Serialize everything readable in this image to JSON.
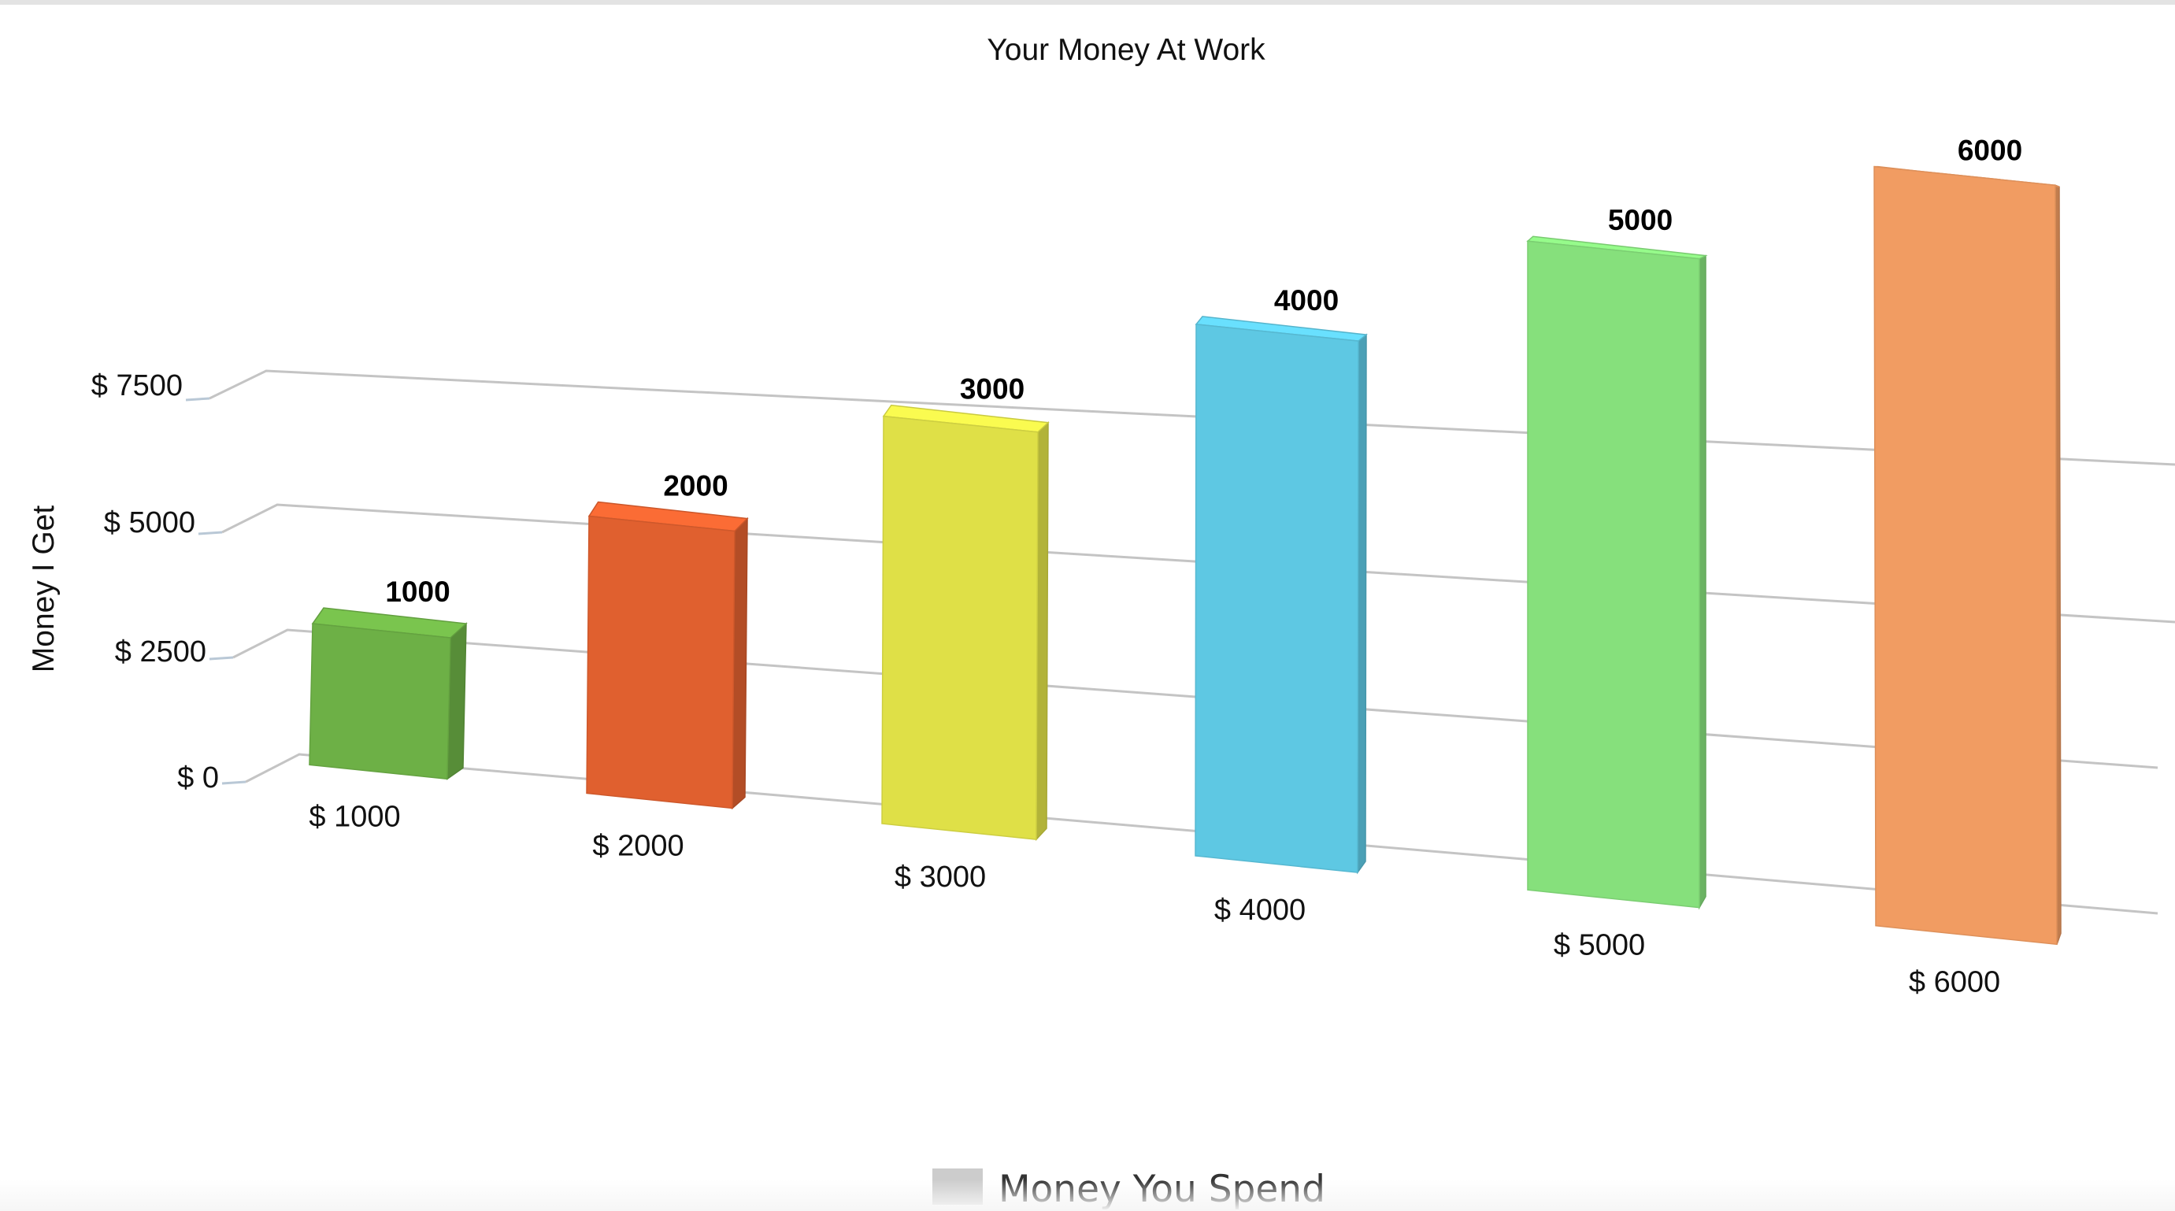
{
  "chart_data": {
    "type": "bar",
    "title": "Your Money At Work",
    "xlabel": "",
    "ylabel": "Money I Get",
    "categories": [
      "$ 1000",
      "$ 2000",
      "$ 3000",
      "$ 4000",
      "$ 5000",
      "$ 6000"
    ],
    "series": [
      {
        "name": "Money You Spend",
        "values": [
          1000,
          2000,
          3000,
          4000,
          5000,
          6000
        ]
      }
    ],
    "data_labels": [
      "1000",
      "2000",
      "3000",
      "4000",
      "5000",
      "6000"
    ],
    "yticks": [
      "$ 0",
      "$ 2500",
      "$ 5000",
      "$ 7500"
    ],
    "ytick_values": [
      0,
      2500,
      5000,
      7500
    ],
    "ylim": [
      0,
      7500
    ],
    "grid": true,
    "view": "3d",
    "legend_position": "bottom",
    "legend_color": "#cccccc",
    "bar_colors": [
      "#6db046",
      "#e0602f",
      "#dfe047",
      "#5ec8e3",
      "#86e07c",
      "#f19c62"
    ]
  }
}
